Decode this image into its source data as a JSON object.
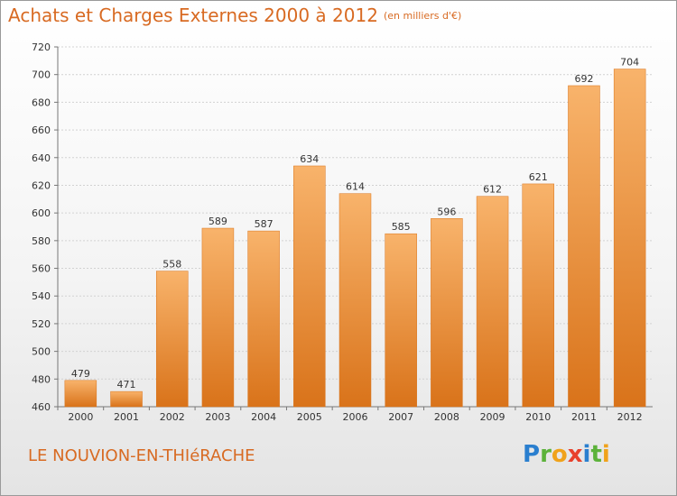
{
  "title": "Achats et Charges Externes 2000 à 2012",
  "subtitle": "(en milliers d'€)",
  "location": "LE NOUVION-EN-THIéRACHE",
  "brand": {
    "letters": [
      "P",
      "r",
      "o",
      "x",
      "i",
      "t",
      "i"
    ],
    "colors": [
      "#2a7fcf",
      "#5cb23a",
      "#f0a21a",
      "#e8412c",
      "#2a7fcf",
      "#5cb23a",
      "#f0a21a"
    ]
  },
  "colors": {
    "bar": "#f5922e",
    "bar_light": "#f8b36b",
    "bar_dark": "#d9731a",
    "accent": "#d86a22"
  },
  "chart_data": {
    "type": "bar",
    "categories": [
      "2000",
      "2001",
      "2002",
      "2003",
      "2004",
      "2005",
      "2006",
      "2007",
      "2008",
      "2009",
      "2010",
      "2011",
      "2012"
    ],
    "values": [
      479,
      471,
      558,
      589,
      587,
      634,
      614,
      585,
      596,
      612,
      621,
      692,
      704
    ],
    "data_labels": [
      "479",
      "471",
      "558",
      "589",
      "587",
      "634",
      "614",
      "585",
      "596",
      "612",
      "621",
      "692",
      "704"
    ],
    "yticks": [
      "460",
      "480",
      "500",
      "520",
      "540",
      "560",
      "580",
      "600",
      "620",
      "640",
      "660",
      "680",
      "700",
      "720"
    ],
    "ylim": [
      460,
      720
    ],
    "grid": true,
    "xlabel": "",
    "ylabel": ""
  }
}
